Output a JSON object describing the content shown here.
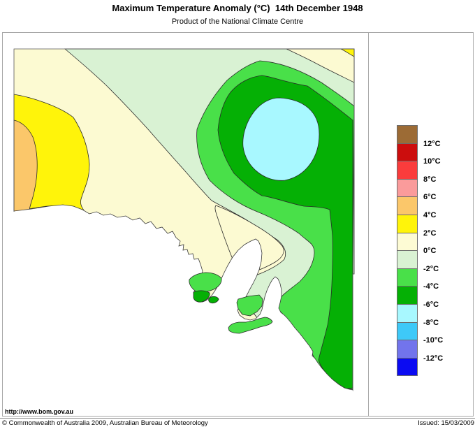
{
  "header": {
    "title": "Maximum Temperature Anomaly (°C)  14th December 1948",
    "subtitle": "Product of the National Climate Centre"
  },
  "footer": {
    "url": "http://www.bom.gov.au",
    "copyright": "© Commonwealth of Australia 2009, Australian Bureau of Meteorology",
    "issued": "Issued: 15/03/2009"
  },
  "legend": {
    "swatches": [
      {
        "name": "brown",
        "color": "#9C6B35"
      },
      {
        "name": "dark-red",
        "color": "#CC0D0D"
      },
      {
        "name": "red",
        "color": "#FA3C3C"
      },
      {
        "name": "pink",
        "color": "#FA9B9B"
      },
      {
        "name": "orange",
        "color": "#FBC76A"
      },
      {
        "name": "yellow",
        "color": "#FFF40A"
      },
      {
        "name": "cream",
        "color": "#FDFBD4"
      },
      {
        "name": "pale-green",
        "color": "#D9F2D3"
      },
      {
        "name": "medium-green",
        "color": "#49E049"
      },
      {
        "name": "dark-green",
        "color": "#05B005"
      },
      {
        "name": "light-cyan",
        "color": "#A8F8FF"
      },
      {
        "name": "cyan",
        "color": "#3EC9F8"
      },
      {
        "name": "blue-violet",
        "color": "#7274EC"
      },
      {
        "name": "blue",
        "color": "#0B0BF2"
      }
    ],
    "tick_labels": [
      "12°C",
      "10°C",
      "8°C",
      "6°C",
      "4°C",
      "2°C",
      "0°C",
      "-2°C",
      "-4°C",
      "-6°C",
      "-8°C",
      "-10°C",
      "-12°C"
    ]
  },
  "palette": {
    "cream": "#FCFAD2",
    "pale_green": "#D9F2D3",
    "medium_green": "#49E049",
    "dark_green": "#05B005",
    "light_cyan": "#A8F8FF",
    "yellow": "#FFF40A",
    "orange": "#FBC76A",
    "sea_white": "#FFFFFF",
    "contour_line": "#2a2a2a",
    "coast_line": "#3a3a3a",
    "frame_line": "#555555"
  },
  "map": {
    "region": "South Australia",
    "type": "filled contour anomaly map",
    "contour_levels_celsius": [
      -12,
      -10,
      -8,
      -6,
      -4,
      -2,
      0,
      2,
      4,
      6,
      8,
      10,
      12
    ],
    "visible_value_range_celsius": [
      -8,
      6
    ]
  }
}
